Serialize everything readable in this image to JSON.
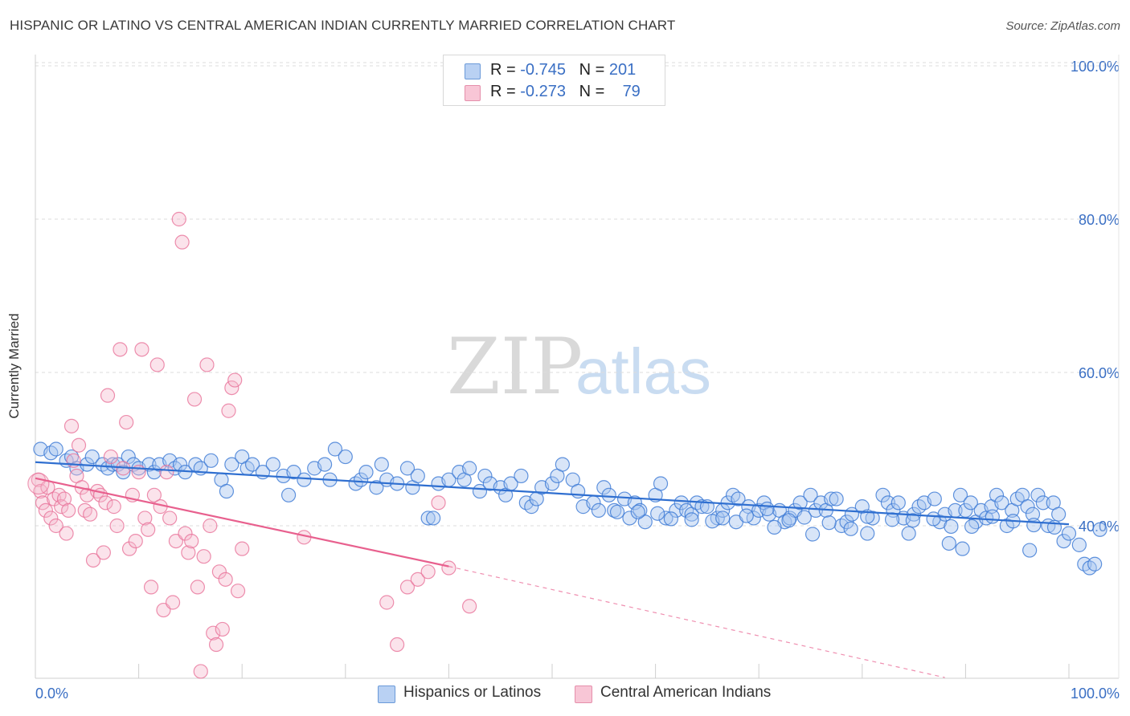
{
  "title": "HISPANIC OR LATINO VS CENTRAL AMERICAN INDIAN CURRENTLY MARRIED CORRELATION CHART",
  "source": "Source: ZipAtlas.com",
  "watermark": {
    "zip": "ZIP",
    "atlas": "atlas"
  },
  "legend": {
    "row1": {
      "r_label": "R = ",
      "r_value": "-0.745",
      "n_label": "N = ",
      "n_value": "201"
    },
    "row2": {
      "r_label": "R = ",
      "r_value": "-0.273",
      "n_label": "N = ",
      "n_value": "79"
    }
  },
  "colors": {
    "blue": "#3a78d4",
    "blue_fill": "#a9c6ef",
    "blue_line": "#2f6fd0",
    "pink": "#e8739a",
    "pink_fill": "#f5b8cc",
    "pink_line": "#e8608e",
    "axis_text": "#3a6fc4",
    "grid": "#dddddd"
  },
  "chart_data": {
    "type": "scatter",
    "title": "HISPANIC OR LATINO VS CENTRAL AMERICAN INDIAN CURRENTLY MARRIED CORRELATION CHART",
    "xlabel": "",
    "ylabel": "Currently Married",
    "xlim": [
      0,
      100
    ],
    "ylim": [
      19,
      102
    ],
    "x_tick_labels": [
      "0.0%",
      "100.0%"
    ],
    "y_ticks": [
      40,
      60,
      80,
      100
    ],
    "y_tick_labels": [
      "40.0%",
      "60.0%",
      "80.0%",
      "100.0%"
    ],
    "grid": true,
    "legend_position": "top-center",
    "series": [
      {
        "name": "Hispanics or Latinos",
        "color": "#3a78d4",
        "r": -0.745,
        "n": 201,
        "trend": {
          "x": [
            0,
            100
          ],
          "y": [
            48.3,
            40.2
          ]
        },
        "points": [
          [
            0.5,
            50
          ],
          [
            1.5,
            49.5
          ],
          [
            2,
            50
          ],
          [
            3,
            48.5
          ],
          [
            3.5,
            49
          ],
          [
            4,
            47.5
          ],
          [
            5,
            48
          ],
          [
            5.5,
            49
          ],
          [
            6.5,
            48
          ],
          [
            7,
            47.5
          ],
          [
            7.5,
            48
          ],
          [
            8,
            48
          ],
          [
            8.5,
            47
          ],
          [
            9,
            49
          ],
          [
            9.5,
            48
          ],
          [
            10,
            47.5
          ],
          [
            11,
            48
          ],
          [
            11.5,
            47
          ],
          [
            12,
            48
          ],
          [
            13,
            48.5
          ],
          [
            13.5,
            47.5
          ],
          [
            14,
            48
          ],
          [
            14.5,
            47
          ],
          [
            15.5,
            48
          ],
          [
            16,
            47.5
          ],
          [
            17,
            48.5
          ],
          [
            18,
            46
          ],
          [
            18.5,
            44.5
          ],
          [
            19,
            48
          ],
          [
            20,
            49
          ],
          [
            20.5,
            47.5
          ],
          [
            21,
            48
          ],
          [
            22,
            47
          ],
          [
            23,
            48
          ],
          [
            24,
            46.5
          ],
          [
            24.5,
            44
          ],
          [
            25,
            47
          ],
          [
            26,
            46
          ],
          [
            27,
            47.5
          ],
          [
            28,
            48
          ],
          [
            28.5,
            46
          ],
          [
            29,
            50
          ],
          [
            30,
            49
          ],
          [
            31,
            45.5
          ],
          [
            31.5,
            46
          ],
          [
            32,
            47
          ],
          [
            33,
            45
          ],
          [
            33.5,
            48
          ],
          [
            34,
            46
          ],
          [
            35,
            45.5
          ],
          [
            36,
            47.5
          ],
          [
            36.5,
            45
          ],
          [
            37,
            46.5
          ],
          [
            38,
            41
          ],
          [
            38.5,
            41
          ],
          [
            39,
            45.5
          ],
          [
            40,
            46
          ],
          [
            41,
            47
          ],
          [
            41.5,
            46
          ],
          [
            42,
            47.5
          ],
          [
            43,
            44.5
          ],
          [
            43.5,
            46.5
          ],
          [
            44,
            45.5
          ],
          [
            45,
            45
          ],
          [
            45.5,
            44
          ],
          [
            46,
            45.5
          ],
          [
            47,
            46.5
          ],
          [
            47.5,
            43
          ],
          [
            48,
            42.5
          ],
          [
            48.5,
            43.5
          ],
          [
            49,
            45
          ],
          [
            50,
            45.5
          ],
          [
            50.5,
            46.5
          ],
          [
            51,
            48
          ],
          [
            52,
            46
          ],
          [
            52.5,
            44.5
          ],
          [
            53,
            42.5
          ],
          [
            54,
            43
          ],
          [
            54.5,
            42
          ],
          [
            55,
            45
          ],
          [
            55.5,
            44
          ],
          [
            56,
            42
          ],
          [
            57,
            43.5
          ],
          [
            57.5,
            41
          ],
          [
            58,
            43
          ],
          [
            58.5,
            42
          ],
          [
            59,
            40.5
          ],
          [
            60,
            44
          ],
          [
            60.5,
            45.5
          ],
          [
            61,
            41
          ],
          [
            62,
            42
          ],
          [
            62.5,
            43
          ],
          [
            63,
            42
          ],
          [
            63.5,
            41.5
          ],
          [
            64,
            43
          ],
          [
            64.5,
            42.5
          ],
          [
            65,
            42.5
          ],
          [
            66,
            41
          ],
          [
            66.5,
            42
          ],
          [
            67,
            43
          ],
          [
            67.5,
            44
          ],
          [
            68,
            43.5
          ],
          [
            69,
            42.5
          ],
          [
            69.5,
            41
          ],
          [
            70,
            42
          ],
          [
            70.5,
            43
          ],
          [
            71,
            41.5
          ],
          [
            72,
            42
          ],
          [
            72.5,
            40.5
          ],
          [
            73,
            41
          ],
          [
            73.5,
            42
          ],
          [
            74,
            43
          ],
          [
            75,
            44
          ],
          [
            75.5,
            42
          ],
          [
            76,
            43
          ],
          [
            76.5,
            42
          ],
          [
            77,
            43.5
          ],
          [
            77.5,
            43.5
          ],
          [
            78,
            40
          ],
          [
            78.5,
            40.5
          ],
          [
            79,
            41.5
          ],
          [
            80,
            42.5
          ],
          [
            80.5,
            39
          ],
          [
            81,
            41
          ],
          [
            82,
            44
          ],
          [
            82.5,
            43
          ],
          [
            83,
            42
          ],
          [
            83.5,
            43
          ],
          [
            84,
            41
          ],
          [
            84.5,
            39
          ],
          [
            85,
            41.5
          ],
          [
            85.5,
            42.5
          ],
          [
            86,
            43
          ],
          [
            87,
            43.5
          ],
          [
            87.5,
            40.5
          ],
          [
            88,
            41.5
          ],
          [
            89,
            42
          ],
          [
            89.5,
            44
          ],
          [
            90,
            42
          ],
          [
            90.5,
            43
          ],
          [
            91,
            40.5
          ],
          [
            91.5,
            42
          ],
          [
            92,
            41
          ],
          [
            92.5,
            42.5
          ],
          [
            93,
            44
          ],
          [
            93.5,
            43
          ],
          [
            94,
            40
          ],
          [
            94.5,
            42
          ],
          [
            95,
            43.5
          ],
          [
            95.5,
            44
          ],
          [
            96,
            42.5
          ],
          [
            96.5,
            41.5
          ],
          [
            97,
            44
          ],
          [
            97.5,
            43
          ],
          [
            98,
            40
          ],
          [
            98.5,
            43
          ],
          [
            99,
            41.5
          ],
          [
            99.5,
            38
          ],
          [
            100,
            39
          ],
          [
            101,
            37.5
          ],
          [
            101.5,
            35
          ],
          [
            102,
            34.5
          ],
          [
            102.5,
            35
          ],
          [
            103,
            39.5
          ],
          [
            96.2,
            36.8
          ],
          [
            89.7,
            37
          ],
          [
            88.4,
            37.7
          ],
          [
            71.5,
            39.8
          ],
          [
            75.2,
            38.9
          ],
          [
            78.9,
            39.6
          ],
          [
            70.8,
            42.2
          ],
          [
            65.5,
            40.6
          ],
          [
            67.8,
            40.5
          ],
          [
            72.9,
            40.7
          ],
          [
            74.4,
            41.1
          ],
          [
            76.8,
            40.4
          ],
          [
            80.5,
            41.2
          ],
          [
            82.9,
            40.8
          ],
          [
            84.9,
            40.7
          ],
          [
            86.9,
            40.9
          ],
          [
            88.6,
            39.9
          ],
          [
            90.6,
            39.9
          ],
          [
            92.6,
            41.2
          ],
          [
            94.6,
            40.6
          ],
          [
            96.6,
            40.1
          ],
          [
            98.6,
            39.8
          ],
          [
            61.5,
            40.9
          ],
          [
            63.5,
            40.8
          ],
          [
            66.5,
            41.0
          ],
          [
            68.8,
            41.3
          ],
          [
            60.2,
            41.6
          ],
          [
            58.3,
            41.8
          ],
          [
            56.3,
            41.8
          ]
        ]
      },
      {
        "name": "Central American Indians",
        "color": "#e8739a",
        "r": -0.273,
        "n": 79,
        "trend": {
          "x": [
            0,
            40
          ],
          "y": [
            46.2,
            34.7
          ]
        },
        "trend_extension": {
          "x": [
            40,
            88
          ],
          "y": [
            34.7,
            20.2
          ]
        },
        "points": [
          [
            0.3,
            46
          ],
          [
            0.5,
            44.5
          ],
          [
            0.7,
            43
          ],
          [
            1,
            42
          ],
          [
            1.2,
            45
          ],
          [
            1.5,
            41
          ],
          [
            1.8,
            43.5
          ],
          [
            2,
            40
          ],
          [
            2.3,
            44
          ],
          [
            2.5,
            42.5
          ],
          [
            2.8,
            43.5
          ],
          [
            3,
            39
          ],
          [
            3.2,
            42
          ],
          [
            3.5,
            53
          ],
          [
            3.7,
            48.5
          ],
          [
            4,
            46.5
          ],
          [
            4.2,
            50.5
          ],
          [
            4.5,
            45
          ],
          [
            4.8,
            42
          ],
          [
            5,
            44
          ],
          [
            5.3,
            41.5
          ],
          [
            5.6,
            35.5
          ],
          [
            6,
            44.5
          ],
          [
            6.3,
            44
          ],
          [
            6.6,
            36.5
          ],
          [
            6.8,
            43
          ],
          [
            7,
            57
          ],
          [
            7.3,
            49
          ],
          [
            7.6,
            42.5
          ],
          [
            7.9,
            40
          ],
          [
            8.2,
            63
          ],
          [
            8.5,
            47.5
          ],
          [
            8.8,
            53.5
          ],
          [
            9.1,
            37
          ],
          [
            9.4,
            44
          ],
          [
            9.7,
            38
          ],
          [
            10,
            47
          ],
          [
            10.3,
            63
          ],
          [
            10.6,
            41
          ],
          [
            10.9,
            39.5
          ],
          [
            11.2,
            32
          ],
          [
            11.5,
            44
          ],
          [
            11.8,
            61
          ],
          [
            12.1,
            42.5
          ],
          [
            12.4,
            29
          ],
          [
            12.7,
            47
          ],
          [
            13,
            41
          ],
          [
            13.3,
            30
          ],
          [
            13.6,
            38
          ],
          [
            13.9,
            80
          ],
          [
            14.2,
            77
          ],
          [
            14.5,
            39
          ],
          [
            14.8,
            36.5
          ],
          [
            15.1,
            38
          ],
          [
            15.4,
            56.5
          ],
          [
            15.7,
            32
          ],
          [
            16,
            21
          ],
          [
            16.3,
            36
          ],
          [
            16.6,
            61
          ],
          [
            16.9,
            40
          ],
          [
            17.2,
            26
          ],
          [
            17.5,
            24.5
          ],
          [
            17.8,
            34
          ],
          [
            18.1,
            26.5
          ],
          [
            18.4,
            33
          ],
          [
            18.7,
            55
          ],
          [
            19,
            58
          ],
          [
            19.3,
            59
          ],
          [
            19.6,
            31.5
          ],
          [
            20,
            37
          ],
          [
            26,
            38.5
          ],
          [
            34,
            30
          ],
          [
            35,
            24.5
          ],
          [
            36,
            32
          ],
          [
            37,
            33
          ],
          [
            38,
            34
          ],
          [
            39,
            43
          ],
          [
            40,
            34.5
          ],
          [
            42,
            29.5
          ]
        ]
      }
    ]
  },
  "bottom_legend": {
    "blue_label": "Hispanics or Latinos",
    "pink_label": "Central American Indians"
  }
}
